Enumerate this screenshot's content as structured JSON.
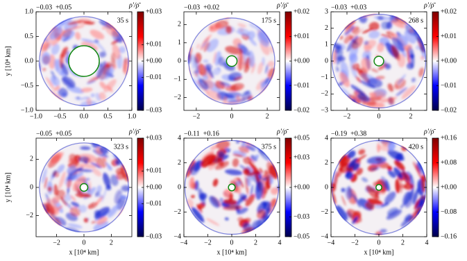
{
  "chart_data": [
    {
      "type": "heatmap",
      "min_label": "−0.03",
      "max_label": "+0.05",
      "time_label": "35 s",
      "colorbar_label": "ρ′/ρ̄",
      "ylabel": "y [10⁴ km]",
      "xlim": [
        -1,
        1
      ],
      "ylim": [
        -1,
        1
      ],
      "xticks": [
        {
          "value": -1,
          "label": "−1.0"
        },
        {
          "value": -0.5,
          "label": "−0.5"
        },
        {
          "value": 0,
          "label": "0.0"
        },
        {
          "value": 0.5,
          "label": "0.5"
        },
        {
          "value": 1,
          "label": "1.0"
        }
      ],
      "yticks": [
        {
          "value": -1,
          "label": "−1.0"
        },
        {
          "value": -0.5,
          "label": "−0.5"
        },
        {
          "value": 0,
          "label": "0.0"
        },
        {
          "value": 0.5,
          "label": "0.5"
        },
        {
          "value": 1,
          "label": "1.0"
        }
      ],
      "clim": [
        -0.03,
        0.03
      ],
      "cticks": [
        {
          "value": 0.03,
          "label": "+0.03"
        },
        {
          "value": 0.01,
          "label": "+0.01"
        },
        {
          "value": 0,
          "label": "+0.00"
        },
        {
          "value": -0.01,
          "label": "−0.01"
        },
        {
          "value": -0.03,
          "label": "−0.03"
        }
      ]
    },
    {
      "type": "heatmap",
      "min_label": "−0.03",
      "max_label": "+0.02",
      "time_label": "175 s",
      "colorbar_label": "ρ′/ρ̄",
      "xlim": [
        -2.7,
        2.7
      ],
      "ylim": [
        -2.7,
        2.7
      ],
      "xticks": [
        {
          "value": -2,
          "label": "−2"
        },
        0,
        2
      ],
      "yticks": [
        {
          "value": -2,
          "label": "−2"
        },
        {
          "value": -1,
          "label": "−1"
        },
        0,
        1,
        2
      ],
      "clim": [
        -0.02,
        0.02
      ],
      "cticks": [
        {
          "value": 0.02,
          "label": "+0.02"
        },
        {
          "value": 0.01,
          "label": "+0.01"
        },
        {
          "value": 0,
          "label": "+0.00"
        },
        {
          "value": -0.01,
          "label": "−0.01"
        },
        {
          "value": -0.02,
          "label": "−0.02"
        }
      ]
    },
    {
      "type": "heatmap",
      "min_label": "−0.03",
      "max_label": "+0.03",
      "time_label": "268 s",
      "colorbar_label": "ρ′/ρ̄",
      "xlim": [
        -3,
        3
      ],
      "ylim": [
        -3,
        3
      ],
      "xticks": [
        {
          "value": -2,
          "label": "−2"
        },
        0,
        2
      ],
      "yticks": [
        {
          "value": -3,
          "label": "−3"
        },
        {
          "value": -2,
          "label": "−2"
        },
        {
          "value": -1,
          "label": "−1"
        },
        0,
        1,
        2,
        3
      ],
      "clim": [
        -0.02,
        0.02
      ],
      "cticks": [
        {
          "value": 0.02,
          "label": "+0.02"
        },
        {
          "value": 0.01,
          "label": "+0.01"
        },
        {
          "value": 0,
          "label": "+0.00"
        },
        {
          "value": -0.01,
          "label": "−0.01"
        },
        {
          "value": -0.02,
          "label": "−0.02"
        }
      ]
    },
    {
      "type": "heatmap",
      "min_label": "−0.05",
      "max_label": "+0.05",
      "time_label": "323 s",
      "colorbar_label": "ρ′/ρ̄",
      "xlabel": "x [10⁴ km]",
      "ylabel": "y [10⁴ km]",
      "xlim": [
        -3.5,
        3.5
      ],
      "ylim": [
        -3.5,
        3.5
      ],
      "xticks": [
        {
          "value": -2,
          "label": "−2"
        },
        0,
        2
      ],
      "yticks": [
        {
          "value": -2,
          "label": "−2"
        },
        0,
        2
      ],
      "clim": [
        -0.03,
        0.03
      ],
      "cticks": [
        {
          "value": 0.03,
          "label": "+0.03"
        },
        {
          "value": 0.01,
          "label": "+0.01"
        },
        {
          "value": 0,
          "label": "+0.00"
        },
        {
          "value": -0.01,
          "label": "−0.01"
        },
        {
          "value": -0.03,
          "label": "−0.03"
        }
      ]
    },
    {
      "type": "heatmap",
      "min_label": "−0.11",
      "max_label": "+0.16",
      "time_label": "375 s",
      "colorbar_label": "ρ′/ρ̄",
      "xlabel": "x [10⁴ km]",
      "xlim": [
        -4,
        4
      ],
      "ylim": [
        -4,
        4
      ],
      "xticks": [
        {
          "value": -4,
          "label": "−4"
        },
        {
          "value": -2,
          "label": "−2"
        },
        0,
        2,
        4
      ],
      "yticks": [
        {
          "value": -4,
          "label": "−4"
        },
        {
          "value": -2,
          "label": "−2"
        },
        0,
        2,
        4
      ],
      "clim": [
        -0.05,
        0.05
      ],
      "cticks": [
        {
          "value": 0.05,
          "label": "+0.05"
        },
        {
          "value": 0.03,
          "label": "+0.03"
        },
        {
          "value": 0,
          "label": "+0.00"
        },
        {
          "value": -0.03,
          "label": "−0.03"
        },
        {
          "value": -0.05,
          "label": "−0.05"
        }
      ]
    },
    {
      "type": "heatmap",
      "min_label": "−0.19",
      "max_label": "+0.38",
      "time_label": "420 s",
      "colorbar_label": "ρ′/ρ̄",
      "xlabel": "x [10⁴ km]",
      "xlim": [
        -4,
        4
      ],
      "ylim": [
        -4,
        4
      ],
      "xticks": [
        {
          "value": -4,
          "label": "−4"
        },
        {
          "value": -2,
          "label": "−2"
        },
        0,
        2,
        4
      ],
      "yticks": [
        {
          "value": -4,
          "label": "−4"
        },
        {
          "value": -2,
          "label": "−2"
        },
        0,
        2,
        4
      ],
      "clim": [
        -0.16,
        0.16
      ],
      "cticks": [
        {
          "value": 0.16,
          "label": "+0.16"
        },
        {
          "value": 0.08,
          "label": "+0.08"
        },
        {
          "value": 0,
          "label": "+0.00"
        },
        {
          "value": -0.08,
          "label": "−0.08"
        },
        {
          "value": -0.16,
          "label": "−0.16"
        }
      ]
    }
  ]
}
